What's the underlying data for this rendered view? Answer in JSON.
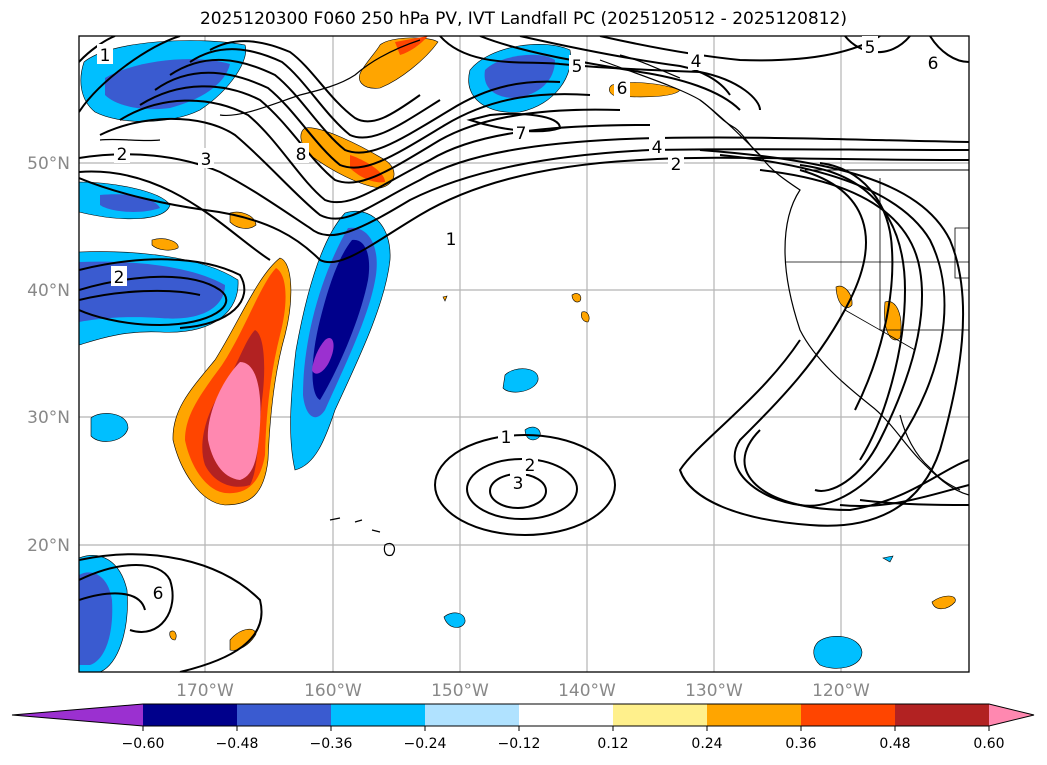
{
  "title": "2025120300 F060 250 hPa PV, IVT Landfall PC (2025120512 - 2025120812)",
  "lat_labels": [
    "50°N",
    "40°N",
    "30°N",
    "20°N"
  ],
  "lon_labels": [
    "170°W",
    "160°W",
    "150°W",
    "140°W",
    "130°W",
    "120°W"
  ],
  "colorbar": {
    "ticks": [
      "−0.60",
      "−0.48",
      "−0.36",
      "−0.24",
      "−0.12",
      "0.12",
      "0.24",
      "0.36",
      "0.48",
      "0.60"
    ],
    "colors": [
      "#9b30d0",
      "#00008b",
      "#3a5bd0",
      "#00bfff",
      "#b0e2ff",
      "#ffffff",
      "#fff08c",
      "#ffa500",
      "#ff4500",
      "#b22222",
      "#ff88b0"
    ]
  },
  "contour_labels": [
    "1",
    "2",
    "3",
    "8",
    "4",
    "5",
    "6",
    "7",
    "1",
    "2",
    "3",
    "2",
    "4",
    "5",
    "6",
    "2",
    "1",
    "6"
  ],
  "map_colors": {
    "neg_deep": "#00008b",
    "neg_mid": "#3a5bd0",
    "neg_light": "#00bfff",
    "neg_min": "#9b30d0",
    "pos_light": "#ffa500",
    "pos_mid": "#ff4500",
    "pos_dark": "#b22222",
    "pos_max": "#ff88b0"
  }
}
